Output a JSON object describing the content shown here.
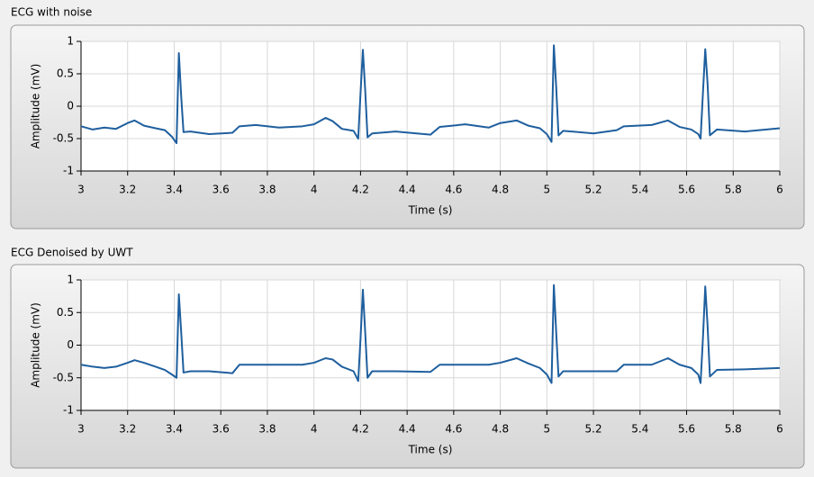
{
  "chart_data": [
    {
      "type": "line",
      "title": "ECG with noise",
      "x_label": "Time (s)",
      "y_label": "Amplitude (mV)",
      "color": "#1f5f9e",
      "grid": true,
      "xlim": [
        3,
        6
      ],
      "xticks": [
        3,
        3.2,
        3.4,
        3.6,
        3.8,
        4,
        4.2,
        4.4,
        4.6,
        4.8,
        5,
        5.2,
        5.4,
        5.6,
        5.8,
        6
      ],
      "ylim": [
        -1,
        1
      ],
      "yticks": [
        -1,
        -0.5,
        0,
        0.5,
        1
      ],
      "x": [
        3,
        3.05,
        3.1,
        3.15,
        3.2,
        3.23,
        3.27,
        3.32,
        3.36,
        3.39,
        3.41,
        3.42,
        3.43,
        3.44,
        3.47,
        3.55,
        3.65,
        3.68,
        3.75,
        3.85,
        3.95,
        4.0,
        4.05,
        4.08,
        4.12,
        4.17,
        4.19,
        4.2,
        4.21,
        4.22,
        4.23,
        4.25,
        4.35,
        4.5,
        4.54,
        4.65,
        4.75,
        4.8,
        4.87,
        4.92,
        4.97,
        5.0,
        5.02,
        5.03,
        5.04,
        5.05,
        5.07,
        5.2,
        5.3,
        5.33,
        5.45,
        5.52,
        5.57,
        5.62,
        5.65,
        5.66,
        5.67,
        5.68,
        5.69,
        5.7,
        5.73,
        5.85,
        6
      ],
      "values": [
        -0.31,
        -0.36,
        -0.33,
        -0.35,
        -0.26,
        -0.22,
        -0.3,
        -0.34,
        -0.37,
        -0.47,
        -0.57,
        0.82,
        0.15,
        -0.4,
        -0.39,
        -0.43,
        -0.41,
        -0.31,
        -0.29,
        -0.33,
        -0.31,
        -0.28,
        -0.18,
        -0.23,
        -0.35,
        -0.38,
        -0.5,
        0.2,
        0.87,
        0.25,
        -0.48,
        -0.42,
        -0.39,
        -0.44,
        -0.32,
        -0.28,
        -0.33,
        -0.26,
        -0.22,
        -0.3,
        -0.34,
        -0.43,
        -0.55,
        0.94,
        0.3,
        -0.45,
        -0.38,
        -0.42,
        -0.37,
        -0.31,
        -0.29,
        -0.22,
        -0.32,
        -0.36,
        -0.43,
        -0.5,
        0.2,
        0.88,
        0.35,
        -0.45,
        -0.36,
        -0.39,
        -0.34
      ]
    },
    {
      "type": "line",
      "title": "ECG Denoised by UWT",
      "x_label": "Time (s)",
      "y_label": "Amplitude (mV)",
      "color": "#1f5f9e",
      "grid": true,
      "xlim": [
        3,
        6
      ],
      "xticks": [
        3,
        3.2,
        3.4,
        3.6,
        3.8,
        4,
        4.2,
        4.4,
        4.6,
        4.8,
        5,
        5.2,
        5.4,
        5.6,
        5.8,
        6
      ],
      "ylim": [
        -1,
        1
      ],
      "yticks": [
        -1,
        -0.5,
        0,
        0.5,
        1
      ],
      "x": [
        3,
        3.05,
        3.1,
        3.15,
        3.2,
        3.23,
        3.27,
        3.32,
        3.36,
        3.39,
        3.41,
        3.42,
        3.43,
        3.44,
        3.47,
        3.55,
        3.65,
        3.68,
        3.75,
        3.85,
        3.95,
        4.0,
        4.05,
        4.08,
        4.12,
        4.17,
        4.19,
        4.2,
        4.21,
        4.22,
        4.23,
        4.25,
        4.35,
        4.5,
        4.54,
        4.65,
        4.75,
        4.8,
        4.87,
        4.92,
        4.97,
        5.0,
        5.02,
        5.03,
        5.04,
        5.05,
        5.07,
        5.2,
        5.3,
        5.33,
        5.45,
        5.52,
        5.57,
        5.62,
        5.65,
        5.66,
        5.67,
        5.68,
        5.69,
        5.7,
        5.73,
        5.85,
        6
      ],
      "values": [
        -0.3,
        -0.33,
        -0.35,
        -0.33,
        -0.27,
        -0.23,
        -0.27,
        -0.33,
        -0.38,
        -0.45,
        -0.5,
        0.78,
        0.2,
        -0.42,
        -0.4,
        -0.4,
        -0.43,
        -0.3,
        -0.3,
        -0.3,
        -0.3,
        -0.27,
        -0.2,
        -0.22,
        -0.33,
        -0.4,
        -0.55,
        0.1,
        0.85,
        0.2,
        -0.5,
        -0.4,
        -0.4,
        -0.41,
        -0.3,
        -0.3,
        -0.3,
        -0.27,
        -0.2,
        -0.28,
        -0.35,
        -0.45,
        -0.58,
        0.92,
        0.2,
        -0.48,
        -0.4,
        -0.4,
        -0.4,
        -0.3,
        -0.3,
        -0.2,
        -0.3,
        -0.35,
        -0.45,
        -0.58,
        0.1,
        0.9,
        0.3,
        -0.48,
        -0.38,
        -0.37,
        -0.35
      ]
    }
  ]
}
